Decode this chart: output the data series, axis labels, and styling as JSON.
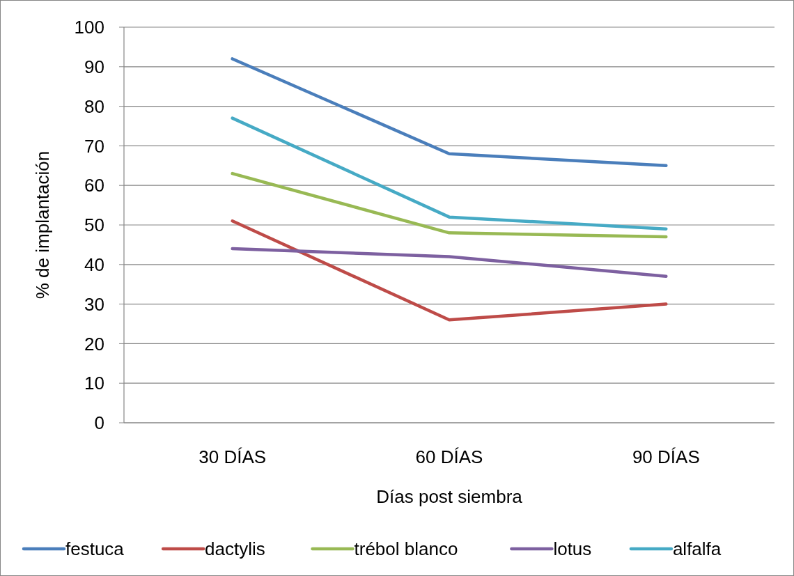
{
  "chart_data": {
    "type": "line",
    "xlabel": "Días post siembra",
    "ylabel": "% de implantación",
    "categories": [
      "30 DÍAS",
      "60 DÍAS",
      "90 DÍAS"
    ],
    "series": [
      {
        "name": "festuca",
        "color": "#4a7ebb",
        "values": [
          92,
          68,
          65
        ]
      },
      {
        "name": "dactylis",
        "color": "#be4b48",
        "values": [
          51,
          26,
          30
        ]
      },
      {
        "name": "trébol blanco",
        "color": "#98b954",
        "values": [
          63,
          48,
          47
        ]
      },
      {
        "name": "lotus",
        "color": "#7d60a0",
        "values": [
          44,
          42,
          37
        ]
      },
      {
        "name": "alfalfa",
        "color": "#46aac5",
        "values": [
          77,
          52,
          49
        ]
      }
    ],
    "ylim": [
      0,
      100
    ],
    "yticks": [
      0,
      10,
      20,
      30,
      40,
      50,
      60,
      70,
      80,
      90,
      100
    ],
    "grid": "y",
    "legend": "bottom",
    "marker": "none",
    "line_style": "solid"
  }
}
